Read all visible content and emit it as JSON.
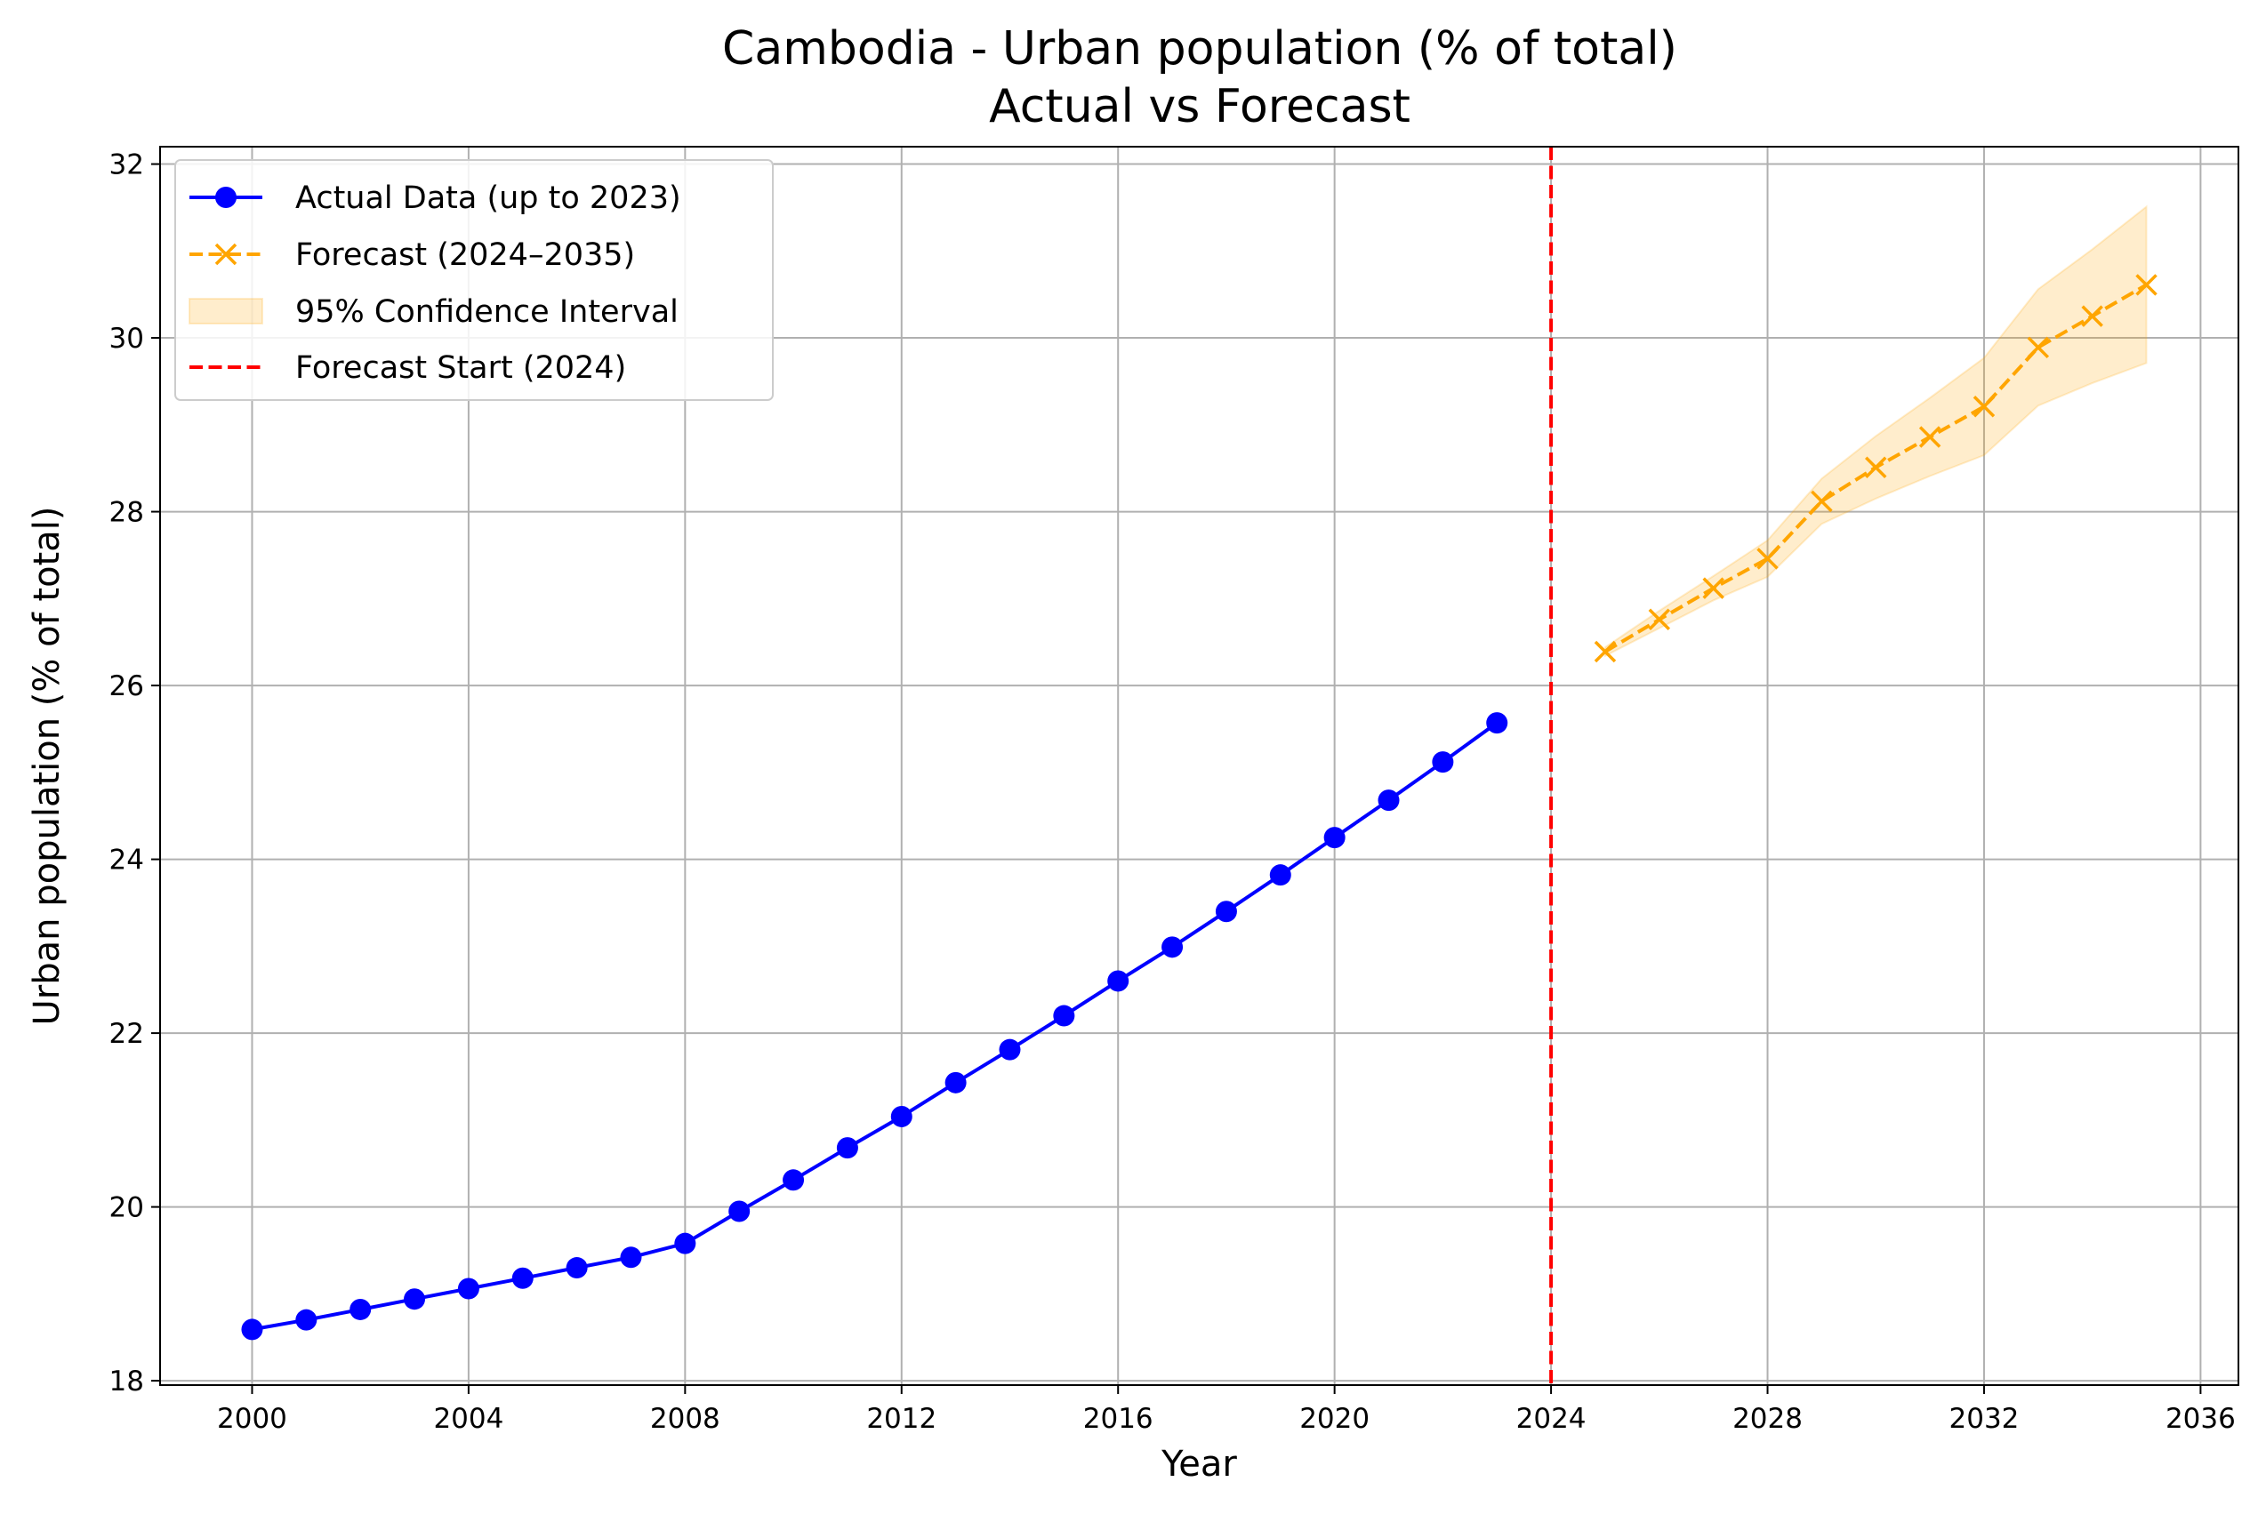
{
  "chart_data": {
    "type": "line",
    "title_lines": [
      "Cambodia - Urban population (% of total)",
      "Actual vs Forecast"
    ],
    "xlabel": "Year",
    "ylabel": "Urban population (% of total)",
    "xlim": [
      1998.3,
      2036.7
    ],
    "ylim": [
      17.95,
      32.2
    ],
    "xticks": [
      2000,
      2004,
      2008,
      2012,
      2016,
      2020,
      2024,
      2028,
      2032,
      2036
    ],
    "yticks": [
      18,
      20,
      22,
      24,
      26,
      28,
      30,
      32
    ],
    "grid": true,
    "legend_position": "top-left",
    "legend": [
      "Actual Data (up to 2023)",
      "Forecast (2024–2035)",
      "95% Confidence Interval",
      "Forecast Start (2024)"
    ],
    "series": [
      {
        "name": "Actual Data (up to 2023)",
        "style": "solid-circle",
        "color": "#0000ff",
        "x": [
          2000,
          2001,
          2002,
          2003,
          2004,
          2005,
          2006,
          2007,
          2008,
          2009,
          2010,
          2011,
          2012,
          2013,
          2014,
          2015,
          2016,
          2017,
          2018,
          2019,
          2020,
          2021,
          2022,
          2023
        ],
        "y": [
          18.59,
          18.7,
          18.82,
          18.94,
          19.06,
          19.18,
          19.3,
          19.42,
          19.58,
          19.95,
          20.31,
          20.68,
          21.04,
          21.43,
          21.81,
          22.2,
          22.6,
          22.99,
          23.4,
          23.82,
          24.25,
          24.68,
          25.12,
          25.57
        ]
      },
      {
        "name": "Forecast (2024–2035)",
        "style": "dashed-x",
        "color": "#ffa500",
        "x": [
          2025,
          2026,
          2027,
          2028,
          2029,
          2030,
          2031,
          2032,
          2033,
          2034,
          2035
        ],
        "y": [
          26.39,
          26.76,
          27.12,
          27.46,
          28.12,
          28.51,
          28.86,
          29.21,
          29.89,
          30.25,
          30.61
        ]
      }
    ],
    "confidence_interval": {
      "name": "95% Confidence Interval",
      "color": "#ffa500",
      "x": [
        2025,
        2026,
        2027,
        2028,
        2029,
        2030,
        2031,
        2032,
        2033,
        2034,
        2035
      ],
      "lower": [
        26.34,
        26.66,
        26.98,
        27.25,
        27.86,
        28.15,
        28.41,
        28.65,
        29.22,
        29.48,
        29.71
      ],
      "upper": [
        26.44,
        26.86,
        27.26,
        27.67,
        28.38,
        28.87,
        29.31,
        29.77,
        30.56,
        31.02,
        31.51
      ]
    },
    "vline": {
      "name": "Forecast Start (2024)",
      "x": 2024,
      "color": "#ff0000",
      "style": "dashed"
    }
  }
}
